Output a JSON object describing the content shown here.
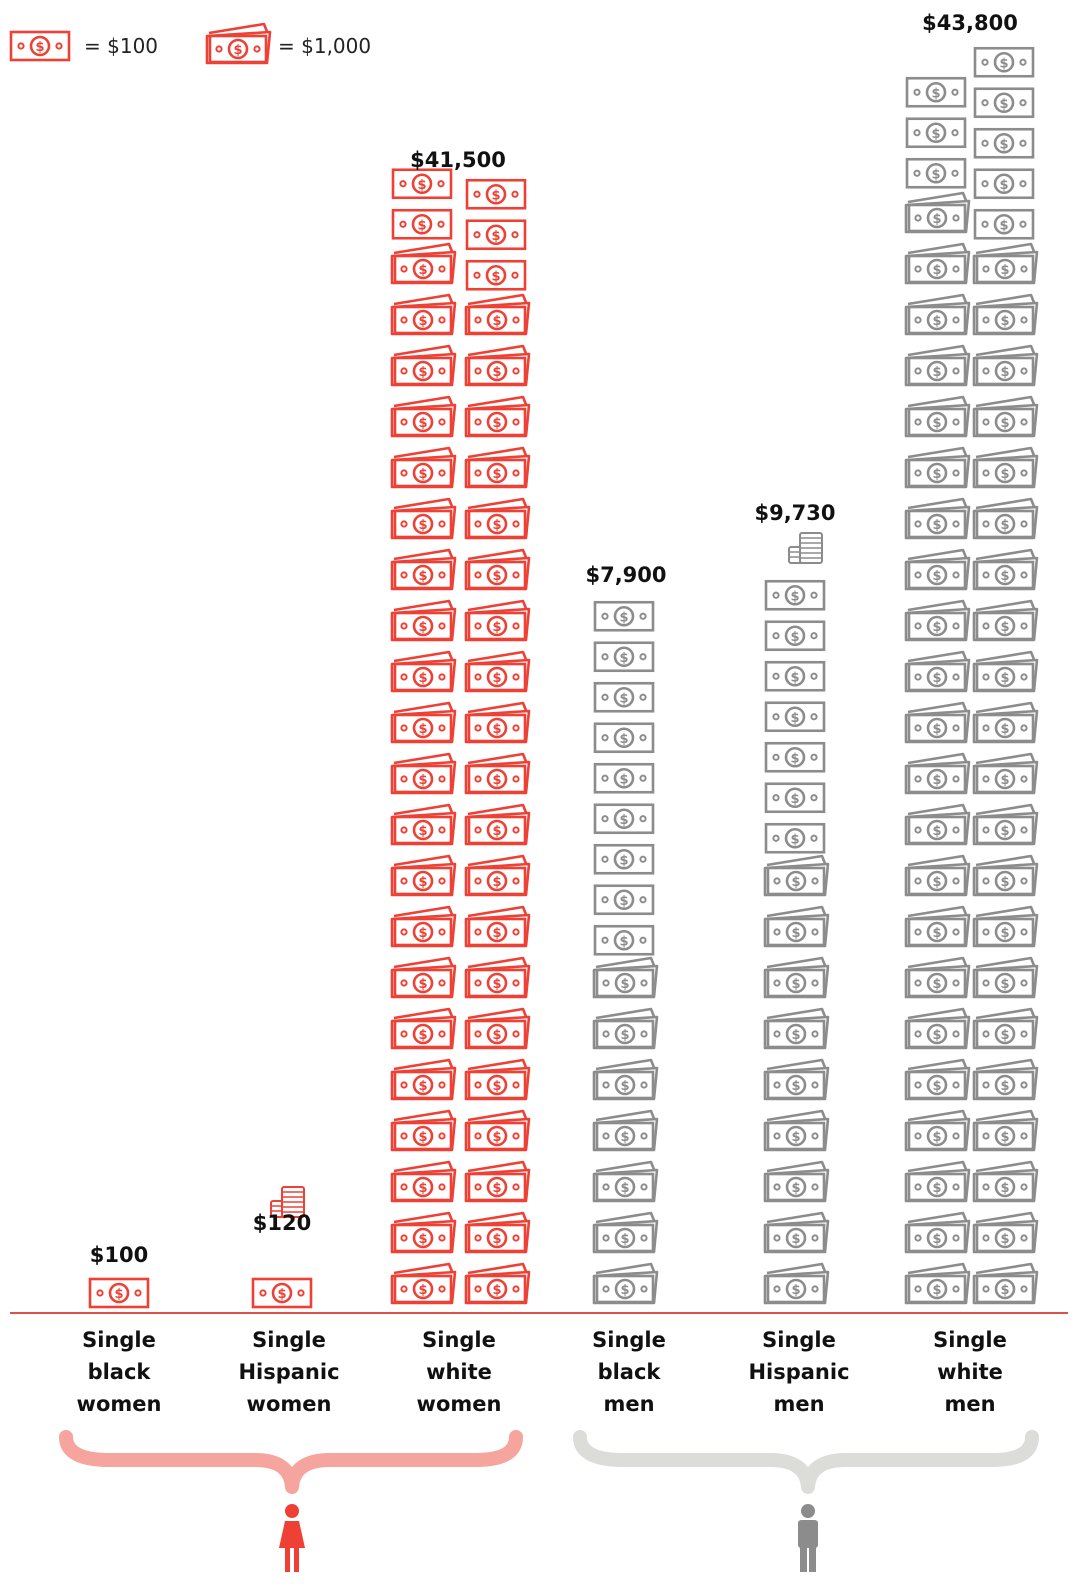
{
  "colors": {
    "women": "#ee4035",
    "men": "#8c8c8c",
    "women_brace": "#f5a49e",
    "men_brace": "#dcdcd8",
    "baseline": "#e05048"
  },
  "legend": [
    {
      "icon": "single-bill-icon",
      "text": "= $100",
      "value": 100
    },
    {
      "icon": "bill-stack-icon",
      "text": "= $1,000",
      "value": 1000
    }
  ],
  "chart_data": {
    "type": "pictograph",
    "categories": [
      [
        "Single",
        "black",
        "women"
      ],
      [
        "Single",
        "Hispanic",
        "women"
      ],
      [
        "Single",
        "white",
        "women"
      ],
      [
        "Single",
        "black",
        "men"
      ],
      [
        "Single",
        "Hispanic",
        "men"
      ],
      [
        "Single",
        "white",
        "men"
      ]
    ],
    "values": [
      100,
      120,
      41500,
      7900,
      9730,
      43800
    ],
    "value_labels": [
      "$100",
      "$120",
      "$41,500",
      "$7,900",
      "$9,730",
      "$43,800"
    ],
    "groups": [
      {
        "gender": "women",
        "icon": "woman-icon",
        "category_indexes": [
          0,
          1,
          2
        ]
      },
      {
        "gender": "men",
        "icon": "man-icon",
        "category_indexes": [
          3,
          4,
          5
        ]
      }
    ]
  }
}
